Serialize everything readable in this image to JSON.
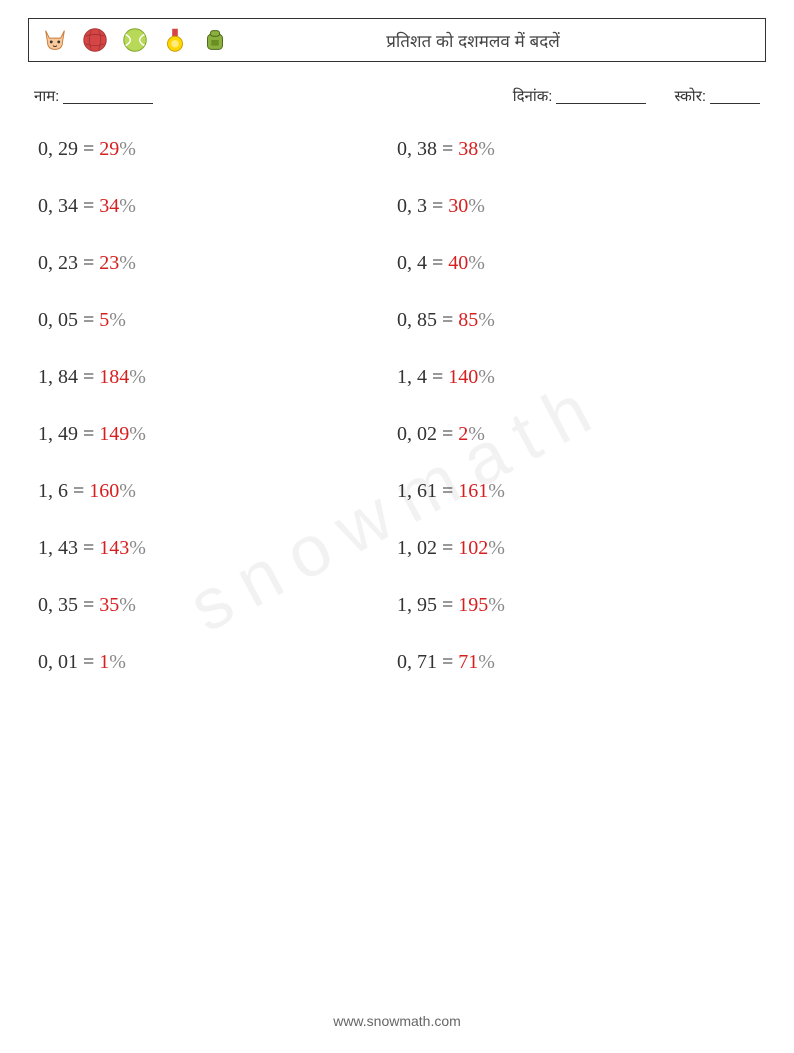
{
  "header": {
    "title": "प्रतिशत को दशमलव में बदलें"
  },
  "meta": {
    "name_label": "नाम:",
    "date_label": "दिनांक:",
    "score_label": "स्कोर:"
  },
  "styling": {
    "text_color": "#333333",
    "answer_color": "#d62020",
    "percent_color": "#888888",
    "border_color": "#333333",
    "background": "#ffffff",
    "problem_fontsize": 20,
    "title_fontsize": 17,
    "row_gap": 34
  },
  "icons": [
    {
      "name": "cat-icon",
      "fill": "#f4a460",
      "stroke": "#c77d3a"
    },
    {
      "name": "yarn-ball-icon",
      "fill": "#d64545",
      "stroke": "#a83232"
    },
    {
      "name": "tennis-ball-icon",
      "fill": "#9acd32",
      "stroke": "#7aa528"
    },
    {
      "name": "medal-icon",
      "fill": "#ffd700",
      "stroke": "#cc9900"
    },
    {
      "name": "backpack-icon",
      "fill": "#6b8e23",
      "stroke": "#4a6618"
    }
  ],
  "columns": {
    "left": [
      {
        "decimal": "0, 29",
        "answer": "29"
      },
      {
        "decimal": "0, 34",
        "answer": "34"
      },
      {
        "decimal": "0, 23",
        "answer": "23"
      },
      {
        "decimal": "0, 05",
        "answer": "5"
      },
      {
        "decimal": "1, 84",
        "answer": "184"
      },
      {
        "decimal": "1, 49",
        "answer": "149"
      },
      {
        "decimal": "1, 6",
        "answer": "160"
      },
      {
        "decimal": "1, 43",
        "answer": "143"
      },
      {
        "decimal": "0, 35",
        "answer": "35"
      },
      {
        "decimal": "0, 01",
        "answer": "1"
      }
    ],
    "right": [
      {
        "decimal": "0, 38",
        "answer": "38"
      },
      {
        "decimal": "0, 3",
        "answer": "30"
      },
      {
        "decimal": "0, 4",
        "answer": "40"
      },
      {
        "decimal": "0, 85",
        "answer": "85"
      },
      {
        "decimal": "1, 4",
        "answer": "140"
      },
      {
        "decimal": "0, 02",
        "answer": "2"
      },
      {
        "decimal": "1, 61",
        "answer": "161"
      },
      {
        "decimal": "1, 02",
        "answer": "102"
      },
      {
        "decimal": "1, 95",
        "answer": "195"
      },
      {
        "decimal": "0, 71",
        "answer": "71"
      }
    ]
  },
  "footer": {
    "url": "www.snowmath.com"
  },
  "watermark": "snowmath"
}
